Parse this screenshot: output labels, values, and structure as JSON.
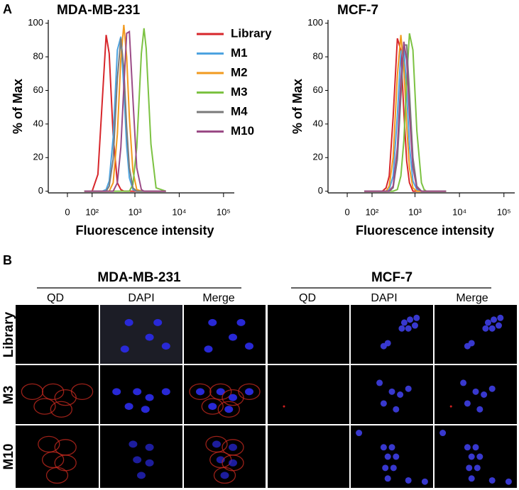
{
  "panel_a": {
    "label": "A"
  },
  "chart_data": [
    {
      "type": "line",
      "title": "MDA-MB-231",
      "xlabel": "Fluorescence intensity",
      "ylabel": "% of Max",
      "xscale": "biexponential",
      "legend": "upper right",
      "x": [
        60,
        100,
        140,
        180,
        220,
        260,
        320,
        400,
        480,
        560,
        650,
        750,
        900,
        1100,
        1400,
        1600,
        1800,
        2300,
        3000,
        5000
      ],
      "xlim": [
        -70,
        175000
      ],
      "xticks": [
        0,
        {
          "value": 100,
          "label": "10²"
        },
        {
          "value": 1000,
          "label": "10³"
        },
        {
          "value": 10000,
          "label": "10⁴"
        },
        {
          "value": 100000,
          "label": "10⁵"
        }
      ],
      "ylim": [
        -1,
        102
      ],
      "yticks": [
        0,
        20,
        40,
        60,
        80,
        100
      ],
      "series": [
        {
          "name": "Library",
          "color": "#d7262b",
          "values": [
            0,
            0,
            10,
            55,
            93,
            82,
            33,
            5,
            1,
            0,
            0,
            0,
            0,
            0,
            0,
            0,
            0,
            0,
            0,
            0
          ]
        },
        {
          "name": "M1",
          "color": "#4ea3e0",
          "values": [
            0,
            0,
            0,
            0,
            1,
            6,
            32,
            84,
            92,
            61,
            27,
            8,
            1,
            0,
            0,
            0,
            0,
            0,
            0,
            0
          ]
        },
        {
          "name": "M2",
          "color": "#f19a1f",
          "values": [
            0,
            0,
            0,
            0,
            0,
            0,
            5,
            34,
            79,
            99,
            80,
            44,
            12,
            1,
            0,
            0,
            0,
            0,
            0,
            0
          ]
        },
        {
          "name": "M3",
          "color": "#7cc242",
          "values": [
            0,
            0,
            0,
            0,
            0,
            0,
            0,
            0,
            0,
            0,
            0,
            0,
            4,
            26,
            82,
            97,
            85,
            28,
            2,
            0
          ]
        },
        {
          "name": "M4",
          "color": "#7a7a7a",
          "values": [
            0,
            0,
            0,
            0,
            0,
            3,
            19,
            67,
            91,
            73,
            38,
            14,
            2,
            0,
            0,
            0,
            0,
            0,
            0,
            0
          ]
        },
        {
          "name": "M10",
          "color": "#9b4b86",
          "values": [
            0,
            0,
            0,
            0,
            0,
            0,
            0,
            5,
            26,
            62,
            94,
            95,
            55,
            14,
            1,
            0,
            0,
            0,
            0,
            0
          ]
        }
      ]
    },
    {
      "type": "line",
      "title": "MCF-7",
      "xlabel": "Fluorescence intensity",
      "ylabel": "% of Max",
      "xscale": "biexponential",
      "x": [
        60,
        100,
        140,
        180,
        220,
        260,
        320,
        400,
        480,
        560,
        650,
        750,
        900,
        1100,
        1400,
        1600,
        1800,
        2300,
        3000,
        5000
      ],
      "xlim": [
        -70,
        175000
      ],
      "xticks": [
        0,
        {
          "value": 100,
          "label": "10²"
        },
        {
          "value": 1000,
          "label": "10³"
        },
        {
          "value": 10000,
          "label": "10⁴"
        },
        {
          "value": 100000,
          "label": "10⁵"
        }
      ],
      "ylim": [
        -1,
        102
      ],
      "yticks": [
        0,
        20,
        40,
        60,
        80,
        100
      ],
      "series": [
        {
          "color": "#d7262b",
          "values": [
            0,
            0,
            0,
            0,
            2,
            9,
            44,
            91,
            84,
            47,
            18,
            5,
            0,
            0,
            0,
            0,
            0,
            0,
            0,
            0
          ]
        },
        {
          "color": "#4ea3e0",
          "values": [
            0,
            0,
            0,
            0,
            0,
            1,
            9,
            45,
            83,
            86,
            59,
            27,
            6,
            1,
            0,
            0,
            0,
            0,
            0,
            0
          ]
        },
        {
          "color": "#f19a1f",
          "values": [
            0,
            0,
            0,
            0,
            0,
            3,
            20,
            69,
            93,
            74,
            39,
            14,
            2,
            0,
            0,
            0,
            0,
            0,
            0,
            0
          ]
        },
        {
          "color": "#7cc242",
          "values": [
            0,
            0,
            0,
            0,
            0,
            0,
            0,
            1,
            9,
            30,
            66,
            94,
            84,
            36,
            5,
            1,
            0,
            0,
            0,
            0
          ]
        },
        {
          "color": "#7a7a7a",
          "values": [
            0,
            0,
            0,
            0,
            0,
            0,
            2,
            19,
            56,
            87,
            87,
            59,
            20,
            3,
            0,
            0,
            0,
            0,
            0,
            0
          ]
        },
        {
          "color": "#9b4b86",
          "values": [
            0,
            0,
            0,
            0,
            0,
            0,
            3,
            26,
            66,
            89,
            78,
            46,
            14,
            2,
            0,
            0,
            0,
            0,
            0,
            0
          ]
        }
      ]
    }
  ],
  "panel_b": {
    "label": "B",
    "groups": [
      {
        "title": "MDA-MB-231",
        "columns": [
          "QD",
          "DAPI",
          "Merge"
        ]
      },
      {
        "title": "MCF-7",
        "columns": [
          "QD",
          "DAPI",
          "Merge"
        ]
      }
    ],
    "rows": [
      "Library",
      "M3",
      "M10"
    ]
  }
}
